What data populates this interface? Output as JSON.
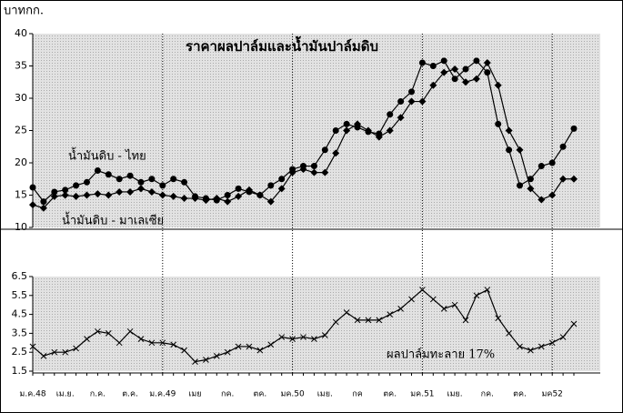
{
  "chart_data": [
    {
      "type": "line",
      "title": "ราคาผลปาล์มและน้ำมันปาล์มดิบ",
      "y_label": "บาทกก.",
      "ylim": [
        10,
        40
      ],
      "yticks": [
        10,
        15,
        20,
        25,
        30,
        35,
        40
      ],
      "series": [
        {
          "name": "น้ำมันดิบ - ไทย",
          "color": "#000000",
          "marker": "circle",
          "values": [
            16.2,
            14,
            15.5,
            15.8,
            16.5,
            17,
            18.8,
            18.2,
            17.5,
            18,
            17,
            17.5,
            16.5,
            17.5,
            17,
            14.8,
            14.5,
            14.2,
            15,
            16,
            15.5,
            15,
            16.5,
            17.5,
            19,
            19.5,
            19.5,
            22,
            25,
            26,
            25.5,
            24.8,
            24.5,
            27.5,
            29.5,
            31,
            35.5,
            35,
            35.8,
            33,
            34.5,
            35.8,
            34,
            26,
            22,
            16.5,
            17.5,
            19.5,
            20,
            22.5,
            25.3
          ]
        },
        {
          "name": "น้ำมันดิบ - มาเลเซีย",
          "color": "#000000",
          "marker": "diamond",
          "values": [
            13.5,
            13,
            14.8,
            15,
            14.8,
            15,
            15.2,
            15,
            15.5,
            15.5,
            16,
            15.5,
            15,
            14.8,
            14.5,
            14.5,
            14.2,
            14.5,
            14,
            14.8,
            15.8,
            15,
            14,
            16,
            18.5,
            19,
            18.5,
            18.5,
            21.5,
            25,
            26,
            25,
            24,
            25,
            27,
            29.5,
            29.5,
            32,
            34,
            34.5,
            32.5,
            33,
            35.5,
            32,
            25,
            22,
            16,
            14.3,
            15,
            17.5,
            17.5
          ]
        }
      ]
    },
    {
      "type": "line",
      "ylim": [
        1.5,
        6.5
      ],
      "yticks": [
        1.5,
        2.5,
        3.5,
        4.5,
        5.5,
        6.5
      ],
      "categories": [
        "ม.ค.48",
        null,
        null,
        "เม.ย.",
        null,
        null,
        "ก.ค.",
        null,
        null,
        "ต.ค.",
        null,
        null,
        "ม.ค.49",
        null,
        null,
        "เมย",
        null,
        null,
        "กค.",
        null,
        null,
        "ตค.",
        null,
        null,
        "มค.50",
        null,
        null,
        "เมย.",
        null,
        null,
        "กค",
        null,
        null,
        "ตค.",
        null,
        null,
        "มค.51",
        null,
        null,
        "เมย.",
        null,
        null,
        "กค.",
        null,
        null,
        "ตค.",
        null,
        null,
        "มค52",
        null,
        null
      ],
      "series": [
        {
          "name": "ผลปาล์มทะลาย 17%",
          "color": "#000000",
          "marker": "cross",
          "values": [
            2.8,
            2.3,
            2.5,
            2.5,
            2.7,
            3.2,
            3.6,
            3.5,
            3.0,
            3.6,
            3.2,
            3.0,
            3.0,
            2.9,
            2.6,
            2.0,
            2.1,
            2.3,
            2.5,
            2.8,
            2.8,
            2.6,
            2.9,
            3.3,
            3.2,
            3.3,
            3.2,
            3.4,
            4.1,
            4.6,
            4.2,
            4.2,
            4.2,
            4.5,
            4.8,
            5.3,
            5.8,
            5.3,
            4.8,
            5.0,
            4.2,
            5.5,
            5.8,
            4.3,
            3.5,
            2.8,
            2.6,
            2.8,
            3.0,
            3.3,
            4.0
          ]
        }
      ]
    }
  ]
}
